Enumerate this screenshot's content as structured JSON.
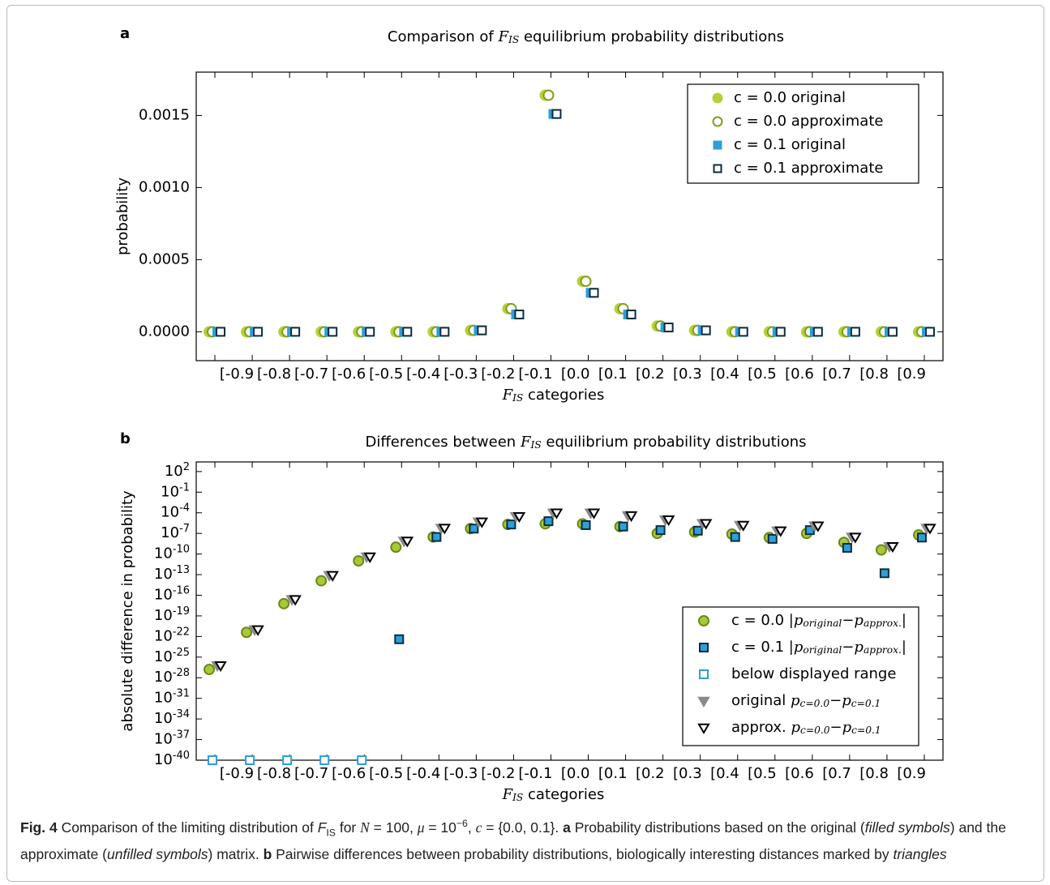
{
  "caption": [
    [
      "Fig. 4",
      "b"
    ],
    [
      "  Comparison of the limiting distribution of ",
      "n"
    ],
    [
      "F",
      "i"
    ],
    [
      "IS",
      "sub"
    ],
    [
      " for ",
      "n"
    ],
    [
      "N",
      "m"
    ],
    [
      " = 100, ",
      "n"
    ],
    [
      "μ",
      "m"
    ],
    [
      " = 10",
      "n"
    ],
    [
      "−6",
      "sup"
    ],
    [
      ", ",
      "n"
    ],
    [
      "c",
      "m"
    ],
    [
      " = {0.0, 0.1}. ",
      "n"
    ],
    [
      "a",
      "b"
    ],
    [
      " Probability distributions based on the original (",
      "n"
    ],
    [
      "filled symbols",
      "i"
    ],
    [
      ") and the approximate (",
      "n"
    ],
    [
      "unfilled symbols",
      "i"
    ],
    [
      ") matrix. ",
      "n"
    ],
    [
      "b",
      "b"
    ],
    [
      " Pairwise differences between probability distributions, biologically interesting distances marked by ",
      "n"
    ],
    [
      "triangles",
      "i"
    ]
  ],
  "chart_data": [
    {
      "type": "scatter",
      "panel": "a",
      "title": [
        [
          "Comparison of ",
          "n"
        ],
        [
          "F",
          "m"
        ],
        [
          "IS",
          "sub"
        ],
        [
          " equilibrium probability distributions",
          "n"
        ]
      ],
      "xlabel": [
        [
          "F",
          "m"
        ],
        [
          "IS",
          "sub"
        ],
        [
          " categories",
          "n"
        ]
      ],
      "ylabel": "probability",
      "categories": [
        null,
        "[-0.9",
        "[-0.8",
        "[-0.7",
        "[-0.6",
        "[-0.5",
        "[-0.4",
        "[-0.3",
        "[-0.2",
        "[-0.1",
        "[0.0",
        "[0.1",
        "[0.2",
        "[0.3",
        "[0.4",
        "[0.5",
        "[0.6",
        "[0.7",
        "[0.8",
        "[0.9"
      ],
      "ylim": [
        -0.0002,
        0.0018
      ],
      "yticks": [
        {
          "value": 0,
          "label": "0.0000"
        },
        {
          "value": 0.0005,
          "label": "0.0005"
        },
        {
          "value": 0.001,
          "label": "0.0010"
        },
        {
          "value": 0.0015,
          "label": "0.0015"
        }
      ],
      "legend": "upper right",
      "series": [
        {
          "name": [
            [
              "c = 0.0 original",
              "n"
            ]
          ],
          "marker": "o",
          "color": "#b4d235",
          "edge": "#b4d235",
          "filled": true,
          "values": [
            0,
            0,
            0,
            0,
            0,
            0,
            0,
            1e-05,
            0.00016,
            0.00164,
            0.00035,
            0.00016,
            4e-05,
            1e-05,
            0,
            0,
            0,
            0,
            0,
            0
          ]
        },
        {
          "name": [
            [
              "c = 0.0 approximate",
              "n"
            ]
          ],
          "marker": "o",
          "color": "#ffffff",
          "edge": "#7e9e1c",
          "filled": false,
          "values": [
            0,
            0,
            0,
            0,
            0,
            0,
            0,
            1e-05,
            0.00016,
            0.00164,
            0.00035,
            0.00016,
            4e-05,
            1e-05,
            0,
            0,
            0,
            0,
            0,
            0
          ]
        },
        {
          "name": [
            [
              "c = 0.1 original",
              "n"
            ]
          ],
          "marker": "s",
          "color": "#2e9fd9",
          "edge": "#2e9fd9",
          "filled": true,
          "values": [
            0,
            0,
            0,
            0,
            0,
            0,
            0,
            1e-05,
            0.00012,
            0.00151,
            0.00027,
            0.00012,
            3e-05,
            1e-05,
            0,
            0,
            0,
            0,
            0,
            0
          ]
        },
        {
          "name": [
            [
              "c = 0.1 approximate",
              "n"
            ]
          ],
          "marker": "s",
          "color": "#2e9fd9",
          "edge": "#0c2d3c",
          "filled": false,
          "values": [
            0,
            0,
            0,
            0,
            0,
            0,
            0,
            1e-05,
            0.00012,
            0.00151,
            0.00027,
            0.00012,
            3e-05,
            1e-05,
            0,
            0,
            0,
            0,
            0,
            0
          ]
        }
      ]
    },
    {
      "type": "scatter",
      "panel": "b",
      "log_y": true,
      "title": [
        [
          "Differences between ",
          "n"
        ],
        [
          "F",
          "m"
        ],
        [
          "IS",
          "sub"
        ],
        [
          " equilibrium probability distributions",
          "n"
        ]
      ],
      "xlabel": [
        [
          "F",
          "m"
        ],
        [
          "IS",
          "sub"
        ],
        [
          " categories",
          "n"
        ]
      ],
      "ylabel": "absolute difference in probability",
      "categories": [
        null,
        "[-0.9",
        "[-0.8",
        "[-0.7",
        "[-0.6",
        "[-0.5",
        "[-0.4",
        "[-0.3",
        "[-0.2",
        "[-0.1",
        "[0.0",
        "[0.1",
        "[0.2",
        "[0.3",
        "[0.4",
        "[0.5",
        "[0.6",
        "[0.7",
        "[0.8",
        "[0.9"
      ],
      "ylim": [
        1e-40,
        2500
      ],
      "yticks": [
        {
          "value": 100,
          "label": "10",
          "exponent": "2"
        },
        {
          "value": 0.1,
          "label": "10",
          "exponent": "-1"
        },
        {
          "value": 0.0001,
          "label": "10",
          "exponent": "-4"
        },
        {
          "value": 1e-07,
          "label": "10",
          "exponent": "-7"
        },
        {
          "value": 1e-10,
          "label": "10",
          "exponent": "-10"
        },
        {
          "value": 1e-13,
          "label": "10",
          "exponent": "-13"
        },
        {
          "value": 1e-16,
          "label": "10",
          "exponent": "-16"
        },
        {
          "value": 1e-19,
          "label": "10",
          "exponent": "-19"
        },
        {
          "value": 1e-22,
          "label": "10",
          "exponent": "-22"
        },
        {
          "value": 1e-25,
          "label": "10",
          "exponent": "-25"
        },
        {
          "value": 1e-28,
          "label": "10",
          "exponent": "-28"
        },
        {
          "value": 1e-31,
          "label": "10",
          "exponent": "-31"
        },
        {
          "value": 1e-34,
          "label": "10",
          "exponent": "-34"
        },
        {
          "value": 1e-37,
          "label": "10",
          "exponent": "-37"
        },
        {
          "value": 1e-40,
          "label": "10",
          "exponent": "-40"
        }
      ],
      "legend": "lower right",
      "below_range": {
        "name": [
          [
            "below displayed range",
            "n"
          ]
        ],
        "marker": "s",
        "color": "#ffffff",
        "edge": "#2e9fd9",
        "filled": false
      },
      "series": [
        {
          "name": [
            [
              "c = 0.0 ",
              "n"
            ],
            [
              "|p",
              "m"
            ],
            [
              "original",
              "sub"
            ],
            [
              "−p",
              "m"
            ],
            [
              "approx.",
              "sub"
            ],
            [
              "|",
              "m"
            ]
          ],
          "marker": "o",
          "color": "#a8c83a",
          "edge": "#6b8a1a",
          "filled": true,
          "values": [
            1.6e-27,
            4e-22,
            6e-18,
            1.3e-14,
            1e-11,
            1e-09,
            3e-08,
            5e-07,
            2e-06,
            2.5e-06,
            2.5e-06,
            1e-06,
            1e-07,
            1.6e-07,
            8e-08,
            2.5e-08,
            1e-07,
            5e-09,
            4e-10,
            6e-08
          ]
        },
        {
          "name": [
            [
              "c = 0.1 ",
              "n"
            ],
            [
              "|p",
              "m"
            ],
            [
              "original",
              "sub"
            ],
            [
              "−p",
              "m"
            ],
            [
              "approx.",
              "sub"
            ],
            [
              "|",
              "m"
            ]
          ],
          "marker": "s",
          "color": "#2e9fd9",
          "edge": "#0c2d3c",
          "filled": true,
          "values": [
            0,
            0,
            0,
            0,
            0,
            4e-23,
            3e-08,
            5e-07,
            2e-06,
            6e-06,
            1.6e-06,
            1e-06,
            3e-07,
            2.5e-07,
            3e-08,
            1.6e-08,
            3e-07,
            8e-10,
            1.6e-13,
            2.5e-08
          ]
        },
        {
          "name": [
            [
              "original ",
              "n"
            ],
            [
              "p",
              "m"
            ],
            [
              "c=0.0",
              "sub"
            ],
            [
              "−p",
              "m"
            ],
            [
              "c=0.1",
              "sub"
            ]
          ],
          "marker": "v",
          "color": "#8a8a8a",
          "edge": "#8a8a8a",
          "filled": true,
          "values": [
            6e-27,
            1e-21,
            2.5e-17,
            8e-14,
            4e-11,
            8e-09,
            6e-07,
            5e-06,
            3e-05,
            0.0001,
            0.0001,
            4e-05,
            1e-05,
            3e-06,
            1.6e-06,
            2.5e-07,
            1.3e-06,
            3e-08,
            1.3e-09,
            6e-07
          ]
        },
        {
          "name": [
            [
              "approx. ",
              "n"
            ],
            [
              "p",
              "m"
            ],
            [
              "c=0.0",
              "sub"
            ],
            [
              "−p",
              "m"
            ],
            [
              "c=0.1",
              "sub"
            ]
          ],
          "marker": "v",
          "color": "#ffffff",
          "edge": "#000000",
          "filled": false,
          "values": [
            6e-27,
            1e-21,
            2.5e-17,
            8e-14,
            4e-11,
            8e-09,
            6e-07,
            5e-06,
            3e-05,
            0.0001,
            0.0001,
            4e-05,
            1e-05,
            3e-06,
            1.6e-06,
            2.5e-07,
            1.3e-06,
            3e-08,
            1.3e-09,
            6e-07
          ]
        }
      ]
    }
  ]
}
